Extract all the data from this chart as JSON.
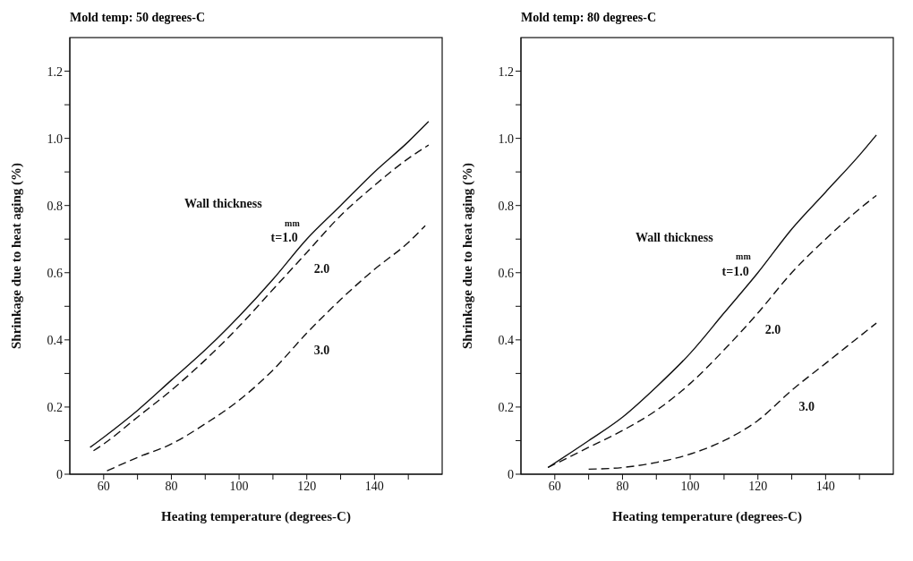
{
  "chart_data": [
    {
      "type": "line",
      "title": "Mold temp: 50 degrees-C",
      "xlabel": "Heating temperature (degrees-C)",
      "ylabel": "Shrinkage due to heat aging (%)",
      "xlim": [
        50,
        160
      ],
      "xticks": [
        60,
        {
          "value": 70,
          "label": null
        },
        80,
        {
          "value": 90,
          "label": null
        },
        100,
        {
          "value": 110,
          "label": null
        },
        120,
        {
          "value": 130,
          "label": null
        },
        140,
        {
          "value": 150,
          "label": null
        }
      ],
      "ylim": [
        0,
        1.3
      ],
      "yticks": [
        0,
        {
          "value": 0.1,
          "label": null
        },
        0.2,
        {
          "value": 0.3,
          "label": null
        },
        0.4,
        {
          "value": 0.5,
          "label": null
        },
        0.6,
        {
          "value": 0.7,
          "label": null
        },
        0.8,
        {
          "value": 0.9,
          "label": null
        },
        {
          "value": 1,
          "label": "1.0"
        },
        {
          "value": 1.1,
          "label": null
        },
        1.2
      ],
      "grid": false,
      "legend": false,
      "series": [
        {
          "name": "t=1.0",
          "color": "#111111",
          "line_style": "solid",
          "x": [
            56,
            60,
            70,
            80,
            90,
            100,
            110,
            120,
            130,
            140,
            150,
            156
          ],
          "values": [
            0.08,
            0.11,
            0.19,
            0.28,
            0.37,
            0.47,
            0.58,
            0.7,
            0.8,
            0.9,
            0.99,
            1.05
          ]
        },
        {
          "name": "2.0",
          "color": "#111111",
          "line_style": "dashed",
          "x": [
            57,
            60,
            70,
            80,
            90,
            100,
            110,
            120,
            130,
            140,
            150,
            156
          ],
          "values": [
            0.07,
            0.09,
            0.17,
            0.25,
            0.34,
            0.44,
            0.55,
            0.66,
            0.77,
            0.86,
            0.94,
            0.98
          ]
        },
        {
          "name": "3.0",
          "color": "#111111",
          "line_style": "dashed",
          "x": [
            61,
            70,
            80,
            90,
            100,
            110,
            120,
            130,
            140,
            150,
            155
          ],
          "values": [
            0.01,
            0.05,
            0.09,
            0.15,
            0.22,
            0.31,
            0.42,
            0.52,
            0.61,
            0.69,
            0.74
          ]
        }
      ],
      "annotations": [
        "Wall thickness",
        "mm"
      ]
    },
    {
      "type": "line",
      "title": "Mold temp: 80 degrees-C",
      "xlabel": "Heating temperature (degrees-C)",
      "ylabel": "Shrinkage due to heat aging (%)",
      "xlim": [
        50,
        160
      ],
      "xticks": [
        60,
        {
          "value": 70,
          "label": null
        },
        80,
        {
          "value": 90,
          "label": null
        },
        100,
        {
          "value": 110,
          "label": null
        },
        120,
        {
          "value": 130,
          "label": null
        },
        140,
        {
          "value": 150,
          "label": null
        }
      ],
      "ylim": [
        0,
        1.3
      ],
      "yticks": [
        0,
        {
          "value": 0.1,
          "label": null
        },
        0.2,
        {
          "value": 0.3,
          "label": null
        },
        0.4,
        {
          "value": 0.5,
          "label": null
        },
        0.6,
        {
          "value": 0.7,
          "label": null
        },
        0.8,
        {
          "value": 0.9,
          "label": null
        },
        {
          "value": 1,
          "label": "1.0"
        },
        {
          "value": 1.1,
          "label": null
        },
        1.2
      ],
      "grid": false,
      "legend": false,
      "series": [
        {
          "name": "t=1.0",
          "color": "#111111",
          "line_style": "solid",
          "x": [
            58,
            70,
            80,
            90,
            100,
            110,
            120,
            130,
            140,
            150,
            155
          ],
          "values": [
            0.02,
            0.1,
            0.17,
            0.26,
            0.36,
            0.48,
            0.6,
            0.73,
            0.84,
            0.95,
            1.01
          ]
        },
        {
          "name": "2.0",
          "color": "#111111",
          "line_style": "dashed",
          "x": [
            58,
            70,
            80,
            90,
            100,
            110,
            120,
            130,
            140,
            150,
            155
          ],
          "values": [
            0.02,
            0.08,
            0.13,
            0.19,
            0.27,
            0.37,
            0.48,
            0.6,
            0.7,
            0.79,
            0.83
          ]
        },
        {
          "name": "3.0",
          "color": "#111111",
          "line_style": "dashed",
          "x": [
            70,
            80,
            90,
            100,
            110,
            120,
            130,
            140,
            150,
            155
          ],
          "values": [
            0.015,
            0.02,
            0.035,
            0.06,
            0.1,
            0.16,
            0.25,
            0.33,
            0.41,
            0.45
          ]
        }
      ],
      "annotations": [
        "Wall thickness",
        "mm"
      ]
    }
  ]
}
